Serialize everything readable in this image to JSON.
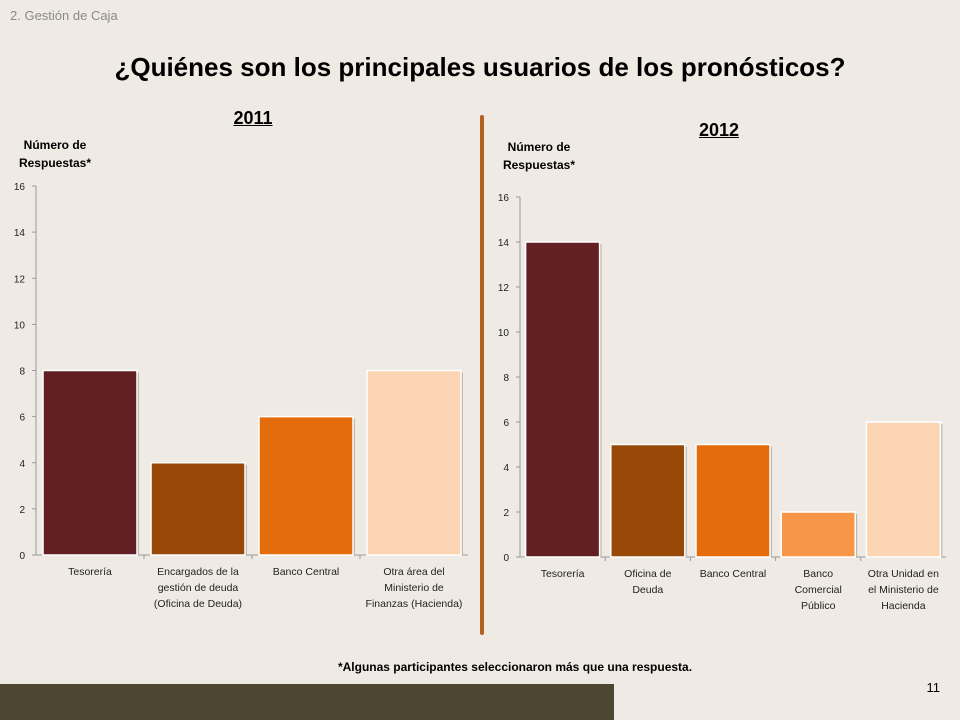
{
  "header": {
    "section": "2. Gestión de Caja",
    "title": "¿Quiénes son los principales usuarios de los pronósticos?"
  },
  "footnote": "*Algunas participantes seleccionaron más que una respuesta.",
  "page_number": "11",
  "chart_data": [
    {
      "type": "bar",
      "title": "2011",
      "ylabel": "Número de Respuestas*",
      "xlabel": "",
      "ylim": [
        0,
        16
      ],
      "yticks": [
        0,
        2,
        4,
        6,
        8,
        10,
        12,
        14,
        16
      ],
      "categories": [
        "Tesorería",
        "Encargados de la gestión de deuda (Oficina de Deuda)",
        "Banco Central",
        "Otra área del Ministerio de Finanzas (Hacienda)"
      ],
      "category_lines": [
        [
          "Tesorería"
        ],
        [
          "Encargados de la",
          "gestión de deuda",
          "(Oficina de Deuda)"
        ],
        [
          "Banco Central"
        ],
        [
          "Otra área del",
          "Ministerio de",
          "Finanzas (Hacienda)"
        ]
      ],
      "values": [
        8,
        4,
        6,
        8
      ],
      "colors": [
        "#632024",
        "#984807",
        "#e46c0a",
        "#fcd5b5"
      ],
      "grid": false,
      "legend": "none"
    },
    {
      "type": "bar",
      "title": "2012",
      "ylabel": "Número de Respuestas*",
      "xlabel": "",
      "ylim": [
        0,
        16
      ],
      "yticks": [
        0,
        2,
        4,
        6,
        8,
        10,
        12,
        14,
        16
      ],
      "categories": [
        "Tesorería",
        "Oficina de Deuda",
        "Banco Central",
        "Banco Comercial Público",
        "Otra Unidad en el Ministerio de Hacienda"
      ],
      "category_lines": [
        [
          "Tesorería"
        ],
        [
          "Oficina de",
          "Deuda"
        ],
        [
          "Banco Central"
        ],
        [
          "Banco",
          "Comercial",
          "Público"
        ],
        [
          "Otra Unidad en",
          "el Ministerio de",
          "Hacienda"
        ]
      ],
      "values": [
        14,
        5,
        5,
        2,
        6
      ],
      "colors": [
        "#632024",
        "#984807",
        "#e46c0a",
        "#f79646",
        "#fcd5b5"
      ],
      "grid": false,
      "legend": "none"
    }
  ]
}
